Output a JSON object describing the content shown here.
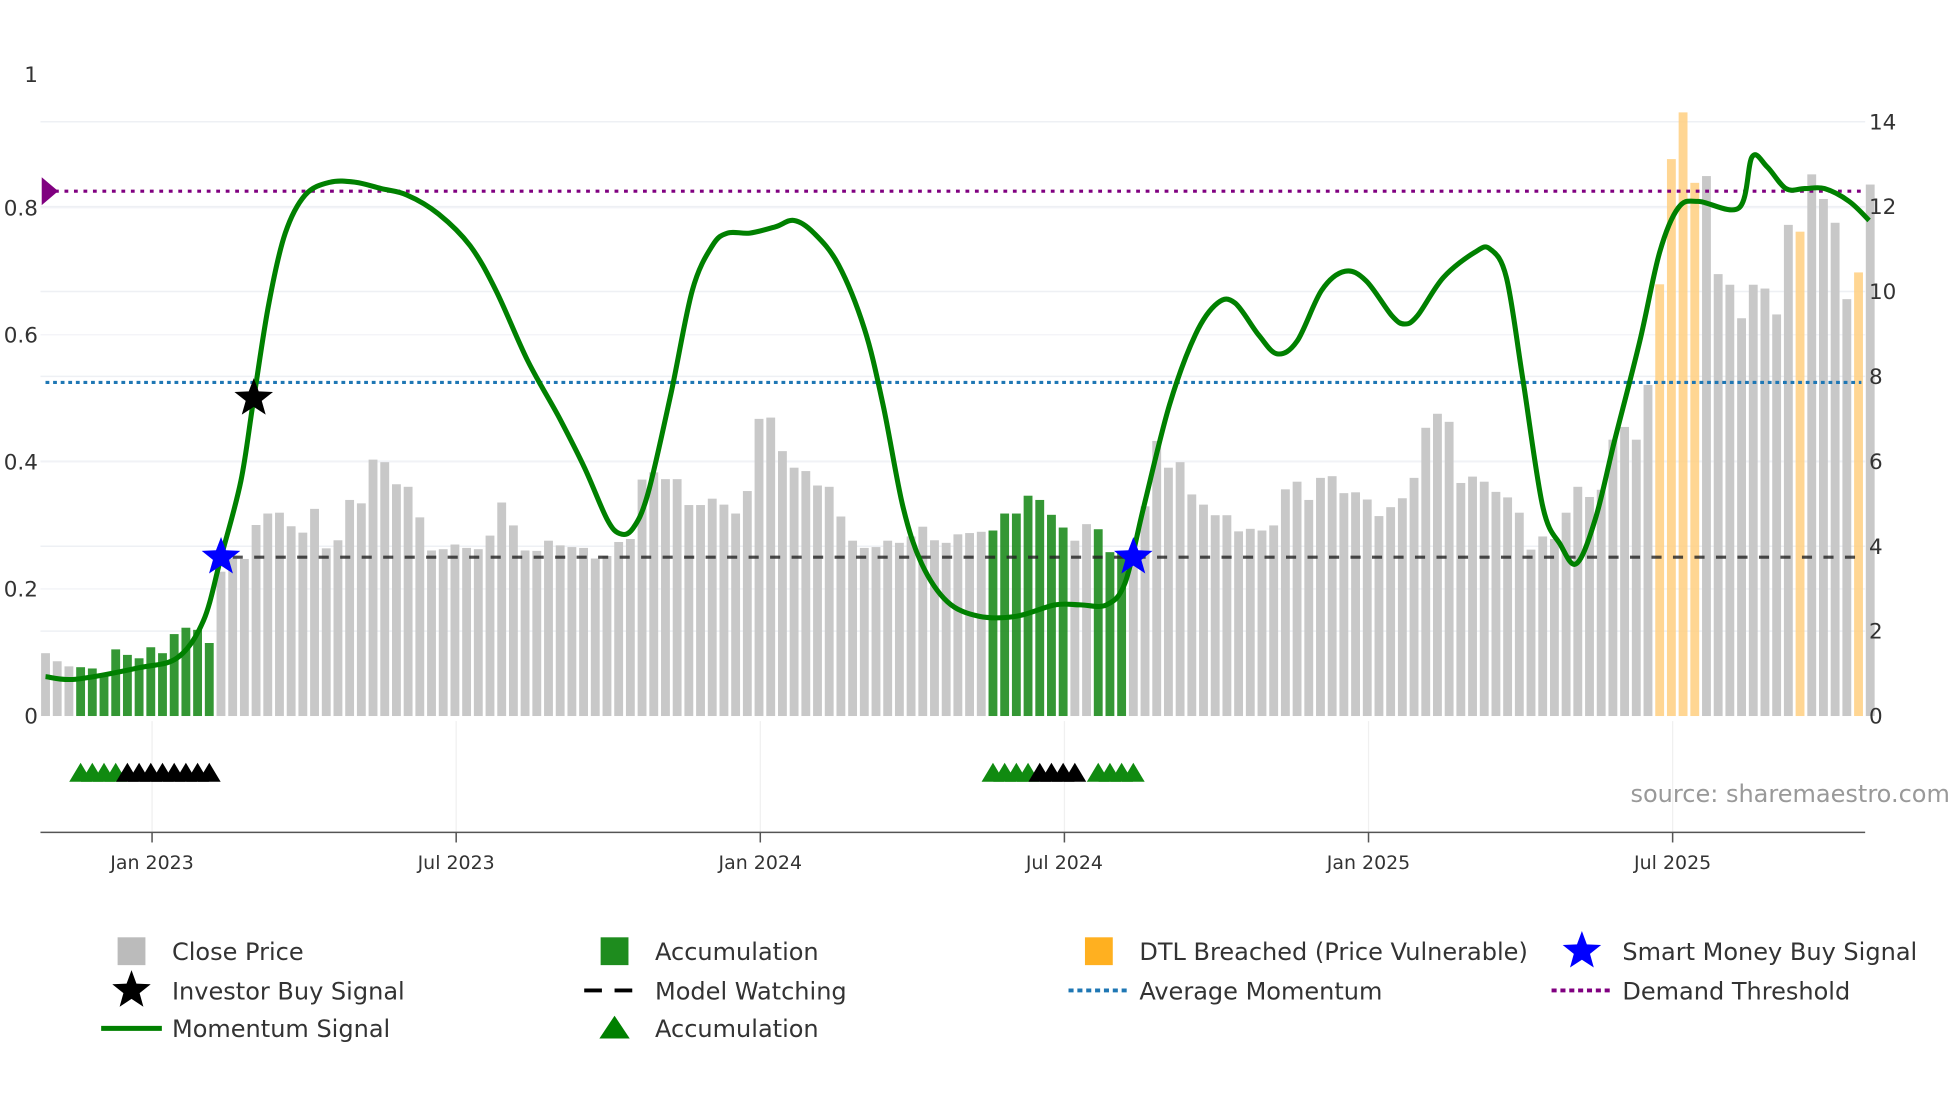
{
  "chart_data": {
    "type": "bar",
    "title": "",
    "source_note": "source: sharemaestro.com",
    "x_ticks": [
      "Jan 2023",
      "Jul 2023",
      "Jan 2024",
      "Jul 2024",
      "Jan 2025",
      "Jul 2025"
    ],
    "x_tick_bar_index": [
      9,
      35,
      61,
      87,
      113,
      139
    ],
    "left_axis": {
      "ticks": [
        "0",
        "0.2",
        "0.4",
        "0.6",
        "0.8",
        "1"
      ],
      "range": [
        0,
        1
      ]
    },
    "right_axis": {
      "ticks": [
        "0",
        "2",
        "4",
        "6",
        "8",
        "10",
        "12",
        "14"
      ],
      "range": [
        0,
        14
      ]
    },
    "close_price": [
      1.48,
      1.29,
      1.17,
      1.15,
      1.12,
      1.0,
      1.57,
      1.44,
      1.36,
      1.62,
      1.48,
      1.93,
      2.08,
      2.03,
      1.72,
      3.4,
      3.71,
      3.7,
      4.5,
      4.77,
      4.79,
      4.47,
      4.32,
      4.88,
      3.95,
      4.14,
      5.09,
      5.01,
      6.04,
      5.98,
      5.46,
      5.4,
      4.68,
      3.9,
      3.93,
      4.04,
      3.96,
      3.93,
      4.25,
      5.03,
      4.49,
      3.9,
      3.89,
      4.13,
      4.02,
      3.98,
      3.96,
      3.71,
      3.77,
      4.1,
      4.17,
      5.57,
      5.74,
      5.58,
      5.58,
      4.97,
      4.97,
      5.12,
      4.98,
      4.77,
      5.3,
      7.0,
      7.03,
      6.24,
      5.85,
      5.77,
      5.43,
      5.4,
      4.7,
      4.13,
      3.96,
      3.98,
      4.13,
      4.08,
      4.23,
      4.46,
      4.14,
      4.08,
      4.28,
      4.31,
      4.34,
      4.37,
      4.77,
      4.77,
      5.19,
      5.09,
      4.74,
      4.44,
      4.13,
      4.52,
      4.4,
      3.86,
      3.89,
      3.75,
      4.94,
      6.48,
      5.85,
      5.98,
      5.22,
      4.98,
      4.73,
      4.73,
      4.35,
      4.41,
      4.37,
      4.49,
      5.34,
      5.52,
      5.09,
      5.61,
      5.65,
      5.25,
      5.27,
      5.1,
      4.71,
      4.92,
      5.13,
      5.61,
      6.79,
      7.12,
      6.93,
      5.49,
      5.64,
      5.52,
      5.28,
      5.15,
      4.79,
      3.92,
      4.23,
      4.17,
      4.79,
      5.4,
      5.16,
      5.33,
      6.51,
      6.81,
      6.51,
      7.8,
      10.17,
      13.12,
      14.22,
      12.56,
      12.72,
      10.41,
      10.16,
      9.37,
      10.16,
      10.07,
      9.46,
      11.57,
      11.41,
      12.76,
      12.18,
      11.62,
      9.82,
      10.45,
      12.52
    ],
    "accumulation_bar_indices": [
      3,
      4,
      5,
      6,
      7,
      8,
      9,
      10,
      11,
      12,
      13,
      14,
      81,
      82,
      83,
      84,
      85,
      86,
      87,
      90,
      91,
      92
    ],
    "dtl_breached_bar_indices": [
      138,
      139,
      140,
      141,
      150,
      155
    ],
    "momentum_signal": [
      [
        0,
        0.062
      ],
      [
        2.6,
        0.058
      ],
      [
        8,
        0.076
      ],
      [
        11.3,
        0.092
      ],
      [
        13.5,
        0.15
      ],
      [
        15,
        0.25
      ],
      [
        16.7,
        0.37
      ],
      [
        17.8,
        0.5
      ],
      [
        19.1,
        0.65
      ],
      [
        20.5,
        0.76
      ],
      [
        22.2,
        0.82
      ],
      [
        24.3,
        0.84
      ],
      [
        26.5,
        0.84
      ],
      [
        28.7,
        0.83
      ],
      [
        30.9,
        0.82
      ],
      [
        33.6,
        0.79
      ],
      [
        36.3,
        0.74
      ],
      [
        38.5,
        0.67
      ],
      [
        41.2,
        0.56
      ],
      [
        43.9,
        0.47
      ],
      [
        46.1,
        0.39
      ],
      [
        48,
        0.31
      ],
      [
        49.1,
        0.287
      ],
      [
        50.2,
        0.295
      ],
      [
        51.5,
        0.35
      ],
      [
        53.5,
        0.51
      ],
      [
        55.3,
        0.67
      ],
      [
        57,
        0.74
      ],
      [
        58.3,
        0.76
      ],
      [
        60.2,
        0.76
      ],
      [
        62.4,
        0.77
      ],
      [
        64,
        0.78
      ],
      [
        65.7,
        0.76
      ],
      [
        67.8,
        0.71
      ],
      [
        70,
        0.61
      ],
      [
        71.6,
        0.49
      ],
      [
        73.3,
        0.33
      ],
      [
        74.9,
        0.24
      ],
      [
        77.1,
        0.18
      ],
      [
        79.8,
        0.157
      ],
      [
        83,
        0.157
      ],
      [
        86.3,
        0.175
      ],
      [
        88.5,
        0.175
      ],
      [
        90.7,
        0.175
      ],
      [
        92.3,
        0.21
      ],
      [
        93.9,
        0.33
      ],
      [
        96.1,
        0.49
      ],
      [
        98.3,
        0.6
      ],
      [
        100.2,
        0.65
      ],
      [
        101.7,
        0.65
      ],
      [
        103.7,
        0.6
      ],
      [
        105.3,
        0.57
      ],
      [
        107,
        0.59
      ],
      [
        109.1,
        0.67
      ],
      [
        111.1,
        0.7
      ],
      [
        112.9,
        0.685
      ],
      [
        115.1,
        0.63
      ],
      [
        116.2,
        0.617
      ],
      [
        117.3,
        0.63
      ],
      [
        119.5,
        0.69
      ],
      [
        122.2,
        0.73
      ],
      [
        123.5,
        0.735
      ],
      [
        124.9,
        0.69
      ],
      [
        126.3,
        0.53
      ],
      [
        128,
        0.33
      ],
      [
        129.5,
        0.27
      ],
      [
        130.9,
        0.24
      ],
      [
        132.5,
        0.31
      ],
      [
        134.1,
        0.43
      ],
      [
        136.3,
        0.59
      ],
      [
        138,
        0.73
      ],
      [
        139.6,
        0.8
      ],
      [
        141.3,
        0.81
      ],
      [
        144.8,
        0.8
      ],
      [
        145.9,
        0.88
      ],
      [
        147.2,
        0.864
      ],
      [
        148.8,
        0.83
      ],
      [
        150.4,
        0.83
      ],
      [
        152.1,
        0.83
      ],
      [
        154.2,
        0.81
      ],
      [
        155.9,
        0.78
      ]
    ],
    "average_momentum": 0.525,
    "demand_threshold": 0.826,
    "model_watching_level": 0.25,
    "model_watching_start_index": 16,
    "investor_buy_signals": [
      [
        17.8,
        0.5
      ]
    ],
    "smart_money_buy_signals": [
      [
        15,
        0.25
      ],
      [
        93,
        0.25
      ]
    ],
    "accumulation_triangles": {
      "green": [
        3,
        4,
        5,
        6,
        81,
        82,
        83,
        84,
        90,
        91,
        92,
        93
      ],
      "black": [
        7,
        8,
        9,
        10,
        11,
        12,
        13,
        14,
        85,
        86,
        87,
        88
      ]
    },
    "legend": [
      {
        "label": "Close Price",
        "kind": "square",
        "color": "#bbbbbb"
      },
      {
        "label": "Accumulation",
        "kind": "square",
        "color": "#1e8c1e"
      },
      {
        "label": "DTL Breached (Price Vulnerable)",
        "kind": "square",
        "color": "#ffb020"
      },
      {
        "label": "Smart Money Buy Signal",
        "kind": "star",
        "color": "#0000ff"
      },
      {
        "label": "Investor Buy Signal",
        "kind": "star",
        "color": "#000000"
      },
      {
        "label": "Model Watching",
        "kind": "dash",
        "color": "#000000"
      },
      {
        "label": "Average Momentum",
        "kind": "dot",
        "color": "#1f77b4"
      },
      {
        "label": "Demand Threshold",
        "kind": "dot",
        "color": "#800080"
      },
      {
        "label": "Momentum Signal",
        "kind": "line",
        "color": "#008000"
      },
      {
        "label": "Accumulation",
        "kind": "triangle",
        "color": "#008000"
      }
    ],
    "colors": {
      "price": "#c8c8c8",
      "accumulation": "#1e8c1e",
      "dtl": "#ffcf80",
      "momentum": "#008000",
      "avg": "#1f77b4",
      "threshold": "#800080",
      "smart": "#0000ff"
    }
  }
}
